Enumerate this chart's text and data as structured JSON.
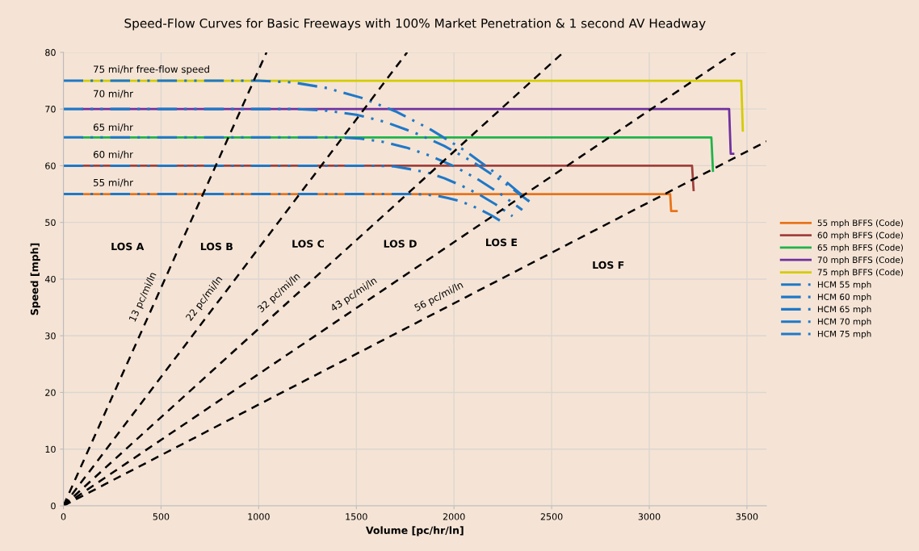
{
  "chart_data": {
    "type": "line",
    "title": "Speed-Flow Curves for Basic Freeways with 100% Market Penetration & 1 second AV Headway",
    "xlabel": "Volume [pc/hr/ln]",
    "ylabel": "Speed [mph]",
    "xlim": [
      0,
      3600
    ],
    "xticks": [
      0,
      500,
      1000,
      1500,
      2000,
      2500,
      3000,
      3500
    ],
    "ylim": [
      0,
      80
    ],
    "yticks": [
      0,
      10,
      20,
      30,
      40,
      50,
      60,
      70,
      80
    ],
    "grid": true,
    "legend": "right",
    "line_style": "solid",
    "marker": "none",
    "series": [
      {
        "name": "55 mph BFFS (Code)",
        "color": "#e8731a",
        "x": [
          100,
          3107,
          3112,
          3140
        ],
        "values": [
          55,
          55,
          52,
          52
        ]
      },
      {
        "name": "60 mph BFFS (Code)",
        "color": "#a0403c",
        "x": [
          100,
          3219,
          3227
        ],
        "values": [
          60,
          60,
          55.7
        ]
      },
      {
        "name": "65 mph BFFS (Code)",
        "color": "#1fb44a",
        "x": [
          100,
          3318,
          3326
        ],
        "values": [
          65,
          65,
          59.1
        ]
      },
      {
        "name": "70 mph BFFS (Code)",
        "color": "#7030a0",
        "x": [
          100,
          3409,
          3417,
          3430
        ],
        "values": [
          70,
          70,
          62.1,
          62.1
        ]
      },
      {
        "name": "75 mph BFFS (Code)",
        "color": "#d4cc00",
        "x": [
          100,
          3471,
          3479
        ],
        "values": [
          75,
          75,
          66.2
        ]
      },
      {
        "name": "HCM 55 mph",
        "color": "#1f78c8",
        "line_style": "dashdotdot",
        "x": [
          0,
          1800,
          1856,
          1913,
          1969,
          2025,
          2081,
          2138,
          2194,
          2250
        ],
        "values": [
          55,
          55,
          54.9,
          54.7,
          54.3,
          53.8,
          53.1,
          52.2,
          51.2,
          50.0
        ]
      },
      {
        "name": "HCM 60 mph",
        "color": "#1f78c8",
        "line_style": "dashdotdot",
        "x": [
          0,
          1600,
          1688,
          1775,
          1863,
          1950,
          2038,
          2125,
          2213,
          2300
        ],
        "values": [
          60,
          60,
          59.9,
          59.4,
          58.8,
          57.8,
          56.5,
          55.0,
          53.2,
          51.1
        ]
      },
      {
        "name": "HCM 65 mph",
        "color": "#1f78c8",
        "line_style": "dashdotdot",
        "x": [
          0,
          1400,
          1519,
          1638,
          1756,
          1875,
          1994,
          2113,
          2231,
          2350
        ],
        "values": [
          65,
          65,
          64.8,
          64.2,
          63.2,
          61.8,
          60.0,
          57.8,
          55.2,
          52.2
        ]
      },
      {
        "name": "HCM 70 mph",
        "color": "#1f78c8",
        "line_style": "dashdotdot",
        "x": [
          0,
          1200,
          1350,
          1500,
          1650,
          1800,
          1950,
          2100,
          2250,
          2400
        ],
        "values": [
          70,
          70,
          69.7,
          69.0,
          67.7,
          65.8,
          63.5,
          60.6,
          57.2,
          53.3
        ]
      },
      {
        "name": "HCM 75 mph",
        "color": "#1f78c8",
        "line_style": "dashdotdot",
        "x": [
          0,
          1000,
          1175,
          1350,
          1525,
          1700,
          1875,
          2050,
          2225,
          2400
        ],
        "values": [
          75,
          75,
          74.7,
          73.7,
          72.0,
          69.6,
          66.5,
          62.8,
          58.4,
          53.3
        ]
      },
      {
        "color": "#000000",
        "line_style": "dashed",
        "x": [
          0,
          1040
        ],
        "values": [
          0,
          80
        ]
      },
      {
        "color": "#000000",
        "line_style": "dashed",
        "x": [
          0,
          1760
        ],
        "values": [
          0,
          80
        ]
      },
      {
        "color": "#000000",
        "line_style": "dashed",
        "x": [
          0,
          2560
        ],
        "values": [
          0,
          80
        ]
      },
      {
        "color": "#000000",
        "line_style": "dashed",
        "x": [
          0,
          3440
        ],
        "values": [
          0,
          80
        ]
      },
      {
        "color": "#000000",
        "line_style": "dashed",
        "x": [
          0,
          3600
        ],
        "values": [
          0,
          64.3
        ]
      }
    ],
    "annotations": [
      {
        "text": "13 pc/mi/ln",
        "x": 467,
        "y": 35.9
      },
      {
        "text": "22 pc/mi/ln",
        "x": 774,
        "y": 35.2
      },
      {
        "text": "32 pc/mi/ln",
        "x": 1148,
        "y": 35.9
      },
      {
        "text": "43 pc/mi/ln",
        "x": 1524,
        "y": 35.4
      },
      {
        "text": "56 pc/mi/ln",
        "x": 1953,
        "y": 34.9
      },
      "75 mi/hr free-flow speed",
      "70 mi/hr",
      "65 mi/hr",
      "60 mi/hr",
      "55 mi/hr",
      "LOS A",
      "LOS B",
      "LOS C",
      "LOS D",
      "LOS E",
      "LOS F"
    ]
  }
}
